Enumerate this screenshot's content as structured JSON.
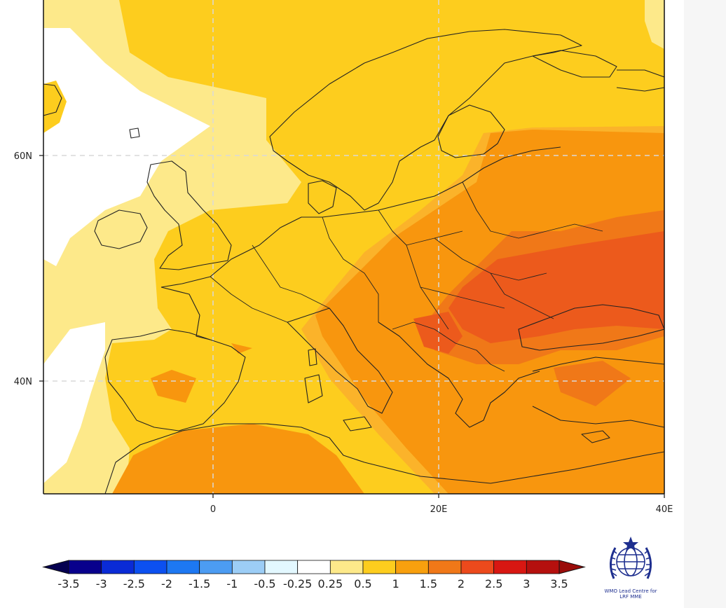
{
  "map": {
    "lat_labels": [
      {
        "text": "60N",
        "lat": 60
      },
      {
        "text": "40N",
        "lat": 40
      }
    ],
    "lon_labels": [
      {
        "text": "0",
        "lon": 0
      },
      {
        "text": "20E",
        "lon": 20
      },
      {
        "text": "40E",
        "lon": 40
      }
    ],
    "colors": {
      "pale_yellow": "#fde98a",
      "yellow": "#fdcd1e",
      "light_orange": "#fbb32a",
      "orange": "#f8960e",
      "dark_orange": "#f07818",
      "red_orange": "#ec5a1c",
      "coastline": "#222222",
      "gridline": "#d9d9d9"
    }
  },
  "colorbar": {
    "labels": [
      "-3.5",
      "-3",
      "-2.5",
      "-2",
      "-1.5",
      "-1",
      "-0.5",
      "-0.25",
      "0.25",
      "0.5",
      "1",
      "1.5",
      "2",
      "2.5",
      "3",
      "3.5"
    ],
    "colors": [
      "#08008c",
      "#0a2bd6",
      "#0c50f0",
      "#1d78f2",
      "#4c9cf2",
      "#9ccdf6",
      "#e3f8ff",
      "#ffffff",
      "#fde98a",
      "#fdcd1e",
      "#f8a00e",
      "#f07818",
      "#ec4a1c",
      "#d81712",
      "#b5100e"
    ],
    "under_color": "#050050",
    "over_color": "#9a0c0a"
  },
  "logo": {
    "caption_line1": "WMO Lead Centre for",
    "caption_line2": "LRF MME",
    "color": "#1e2f8f"
  }
}
